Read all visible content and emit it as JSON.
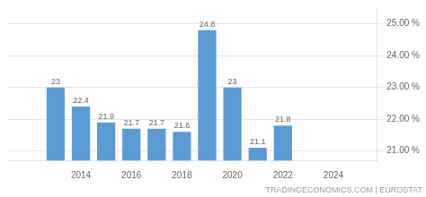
{
  "chart_data": {
    "type": "bar",
    "x": [
      2013,
      2014,
      2015,
      2016,
      2017,
      2018,
      2019,
      2020,
      2021,
      2022
    ],
    "values": [
      23.0,
      22.4,
      21.9,
      21.7,
      21.7,
      21.6,
      24.8,
      23.0,
      21.1,
      21.8
    ],
    "color": "#5b9bd5",
    "data_labels": true,
    "xlim": [
      2012.3,
      2024.5
    ],
    "xticks": [
      2014,
      2016,
      2018,
      2020,
      2022,
      2024
    ],
    "ylim": [
      20.7,
      25.5
    ],
    "yticks": [
      {
        "value": 21.0,
        "label": "21.00 %"
      },
      {
        "value": 22.0,
        "label": "22.00 %"
      },
      {
        "value": 23.0,
        "label": "23.00 %"
      },
      {
        "value": 24.0,
        "label": "24.00 %"
      },
      {
        "value": 25.0,
        "label": "25.00 %"
      }
    ],
    "grid": true,
    "annotation": "TRADINGECONOMICS.COM | EUROSTAT"
  }
}
